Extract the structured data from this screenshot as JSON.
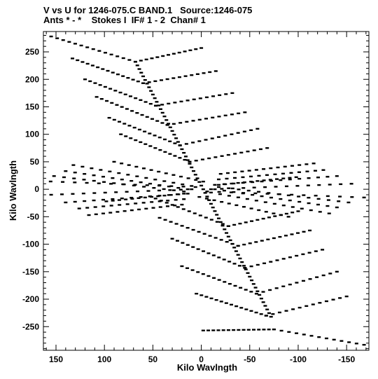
{
  "chart_data": {
    "type": "scatter",
    "title_line1": "V vs U for 1246-075.C BAND.1   Source:1246-075",
    "title_line2": "Ants * - *    Stokes I  IF# 1 - 2  Chan# 1",
    "xlabel": "Kilo Wavlngth",
    "ylabel": "Kilo Wavlngth",
    "xlim": [
      163,
      -173
    ],
    "ylim": [
      -293,
      287
    ],
    "x_reversed": true,
    "xticks": [
      150,
      100,
      50,
      0,
      -50,
      -100,
      -150
    ],
    "yticks": [
      250,
      200,
      150,
      100,
      50,
      0,
      -50,
      -100,
      -150,
      -200,
      -250
    ],
    "xtick_labels": [
      "150",
      "100",
      "50",
      "0",
      "-50",
      "-100",
      "-150"
    ],
    "ytick_labels": [
      "250",
      "200",
      "150",
      "100",
      "50",
      "0",
      "-50",
      "-100",
      "-150",
      "-200",
      "-250"
    ],
    "grid": false,
    "legend": "none",
    "marker_color": "#000000",
    "series": [
      {
        "ray_angle_deg": [
          -158,
          -170,
          5,
          10,
          18,
          27,
          38,
          58,
          78,
          102,
          108,
          122,
          150,
          155
        ],
        "ray_length": [
          164,
          152,
          152,
          155,
          158,
          163,
          172,
          200,
          235,
          240,
          258,
          278,
          300,
          320
        ],
        "bend_point": [
          [
            68,
            232
          ],
          [
            65,
            193
          ],
          [
            50,
            155
          ],
          [
            36,
            117
          ],
          [
            22,
            78
          ],
          [
            -8,
            -15
          ],
          [
            -35,
            -113
          ],
          [
            -50,
            -150
          ],
          [
            -62,
            -190
          ],
          [
            -72,
            -232
          ]
        ]
      }
    ],
    "families": [
      {
        "start": [
          -20,
          28
        ],
        "end": [
          -116,
          47
        ],
        "count": 13
      },
      {
        "start": [
          -18,
          18
        ],
        "end": [
          -126,
          35
        ],
        "count": 13
      },
      {
        "start": [
          -14,
          8
        ],
        "end": [
          -140,
          24
        ],
        "count": 13
      },
      {
        "start": [
          -10,
          0
        ],
        "end": [
          -155,
          10
        ],
        "count": 13
      },
      {
        "start": [
          -6,
          -4
        ],
        "end": [
          -168,
          -15
        ],
        "count": 13
      },
      {
        "start": [
          10,
          6
        ],
        "end": [
          132,
          44
        ],
        "count": 13
      },
      {
        "start": [
          14,
          0
        ],
        "end": [
          140,
          33
        ],
        "count": 13
      },
      {
        "start": [
          18,
          -4
        ],
        "end": [
          152,
          24
        ],
        "count": 13
      },
      {
        "start": [
          18,
          -8
        ],
        "end": [
          98,
          -22
        ],
        "count": 12
      },
      {
        "start": [
          -2,
          14
        ],
        "end": [
          90,
          50
        ],
        "count": 12
      }
    ],
    "arms": [
      {
        "bend": [
          68,
          232
        ],
        "up_end": [
          155,
          278
        ],
        "right_end": [
          0,
          257
        ]
      },
      {
        "bend": [
          60,
          193
        ],
        "up_end": [
          133,
          238
        ],
        "right_end": [
          -15,
          215
        ]
      },
      {
        "bend": [
          47,
          152
        ],
        "up_end": [
          120,
          200
        ],
        "right_end": [
          -32,
          175
        ]
      },
      {
        "bend": [
          35,
          117
        ],
        "up_end": [
          108,
          168
        ],
        "right_end": [
          -45,
          140
        ]
      },
      {
        "bend": [
          22,
          80
        ],
        "up_end": [
          95,
          130
        ],
        "right_end": [
          -58,
          110
        ]
      },
      {
        "bend": [
          12,
          50
        ],
        "up_end": [
          83,
          100
        ],
        "right_end": [
          -68,
          75
        ]
      },
      {
        "bend": [
          -28,
          -67
        ],
        "up_end": [
          53,
          -13
        ],
        "right_end": [
          -100,
          -40
        ]
      },
      {
        "bend": [
          -38,
          -103
        ],
        "up_end": [
          43,
          -52
        ],
        "right_end": [
          -112,
          -75
        ]
      },
      {
        "bend": [
          -45,
          -143
        ],
        "up_end": [
          30,
          -90
        ],
        "right_end": [
          -125,
          -110
        ]
      },
      {
        "bend": [
          -57,
          -190
        ],
        "up_end": [
          20,
          -140
        ],
        "right_end": [
          -140,
          -150
        ]
      },
      {
        "bend": [
          -67,
          -230
        ],
        "up_end": [
          5,
          -190
        ],
        "right_end": [
          -150,
          -195
        ]
      },
      {
        "bend": [
          -75,
          -255
        ],
        "up_end": [
          -2,
          -257
        ],
        "right_end": [
          -168,
          -283
        ]
      }
    ],
    "spine": {
      "start": [
        68,
        232
      ],
      "end": [
        -72,
        -232
      ],
      "count": 70
    }
  }
}
